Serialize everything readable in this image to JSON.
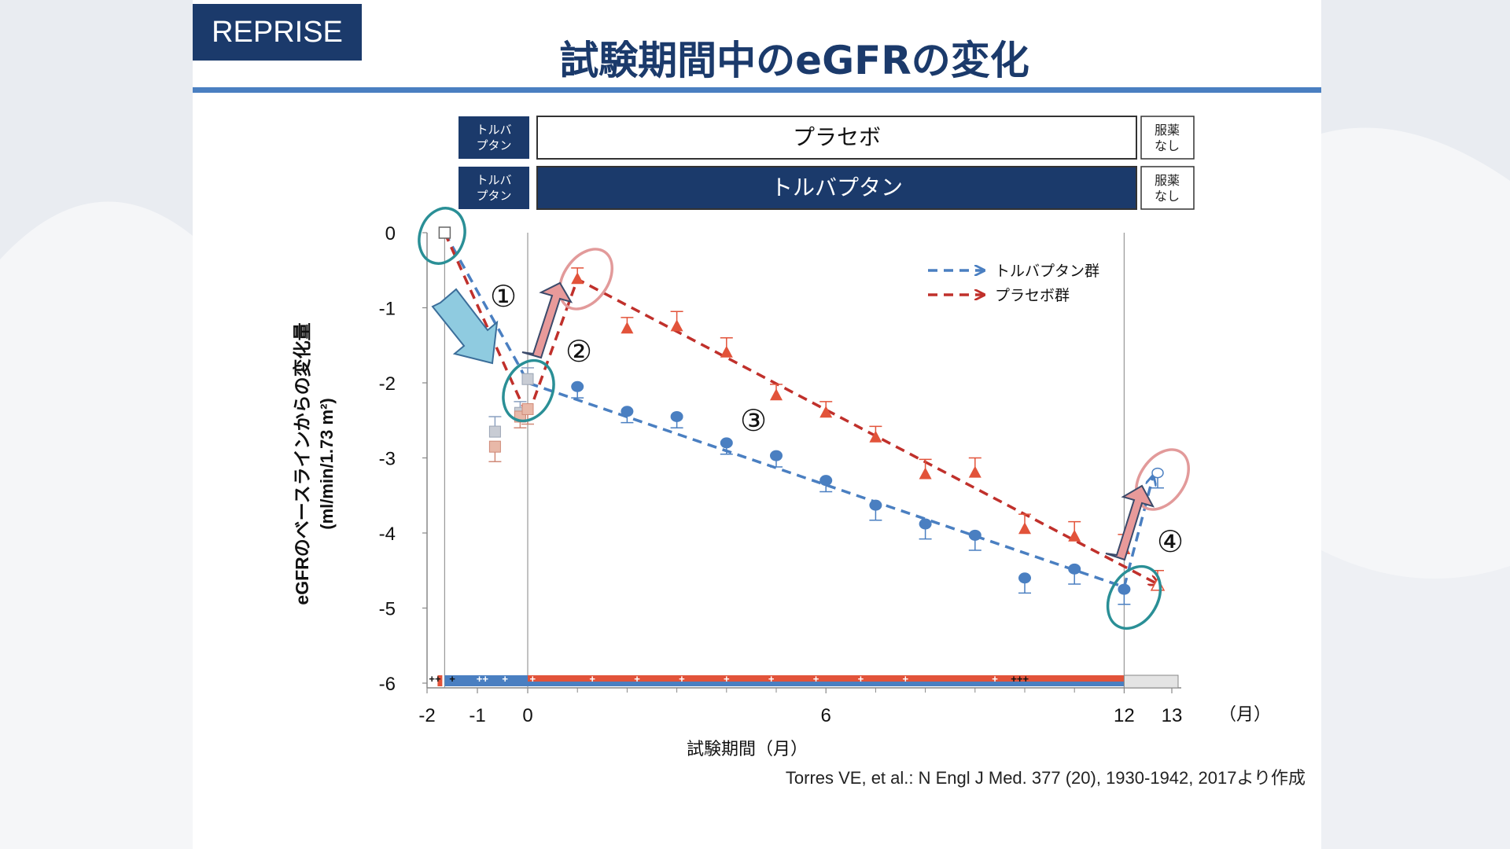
{
  "badge": "REPRISE",
  "title": "試験期間中のeGFRの変化",
  "citation": "Torres VE, et al.: N Engl J Med. 377 (20), 1930-1942, 2017より作成",
  "colors": {
    "navy": "#1b3a6b",
    "rule": "#4a7fc1",
    "tolvaptan": "#4a7fc1",
    "placebo": "#c0302b",
    "placebo_marker": "#e2533a",
    "teal_circle": "#2a8f96",
    "pink_circle": "#e29a9a",
    "light_blue_arrow": "#8fcbe0",
    "pink_arrow": "#e89a9a"
  },
  "phase_bars": [
    {
      "row": "placebo",
      "labels": [
        "トルバ\nプタン",
        "プラセボ",
        "服薬\nなし"
      ]
    },
    {
      "row": "tolvaptan",
      "labels": [
        "トルバ\nプタン",
        "トルバプタン",
        "服薬\nなし"
      ]
    }
  ],
  "annotations": {
    "step_numbers": [
      "①",
      "②",
      "③",
      "④"
    ],
    "bottom_marks": [
      "++",
      "+",
      "++",
      "+",
      "+",
      "+",
      "+",
      "+",
      "+",
      "+",
      "+",
      "+",
      "+",
      "+++",
      "+"
    ]
  },
  "chart_data": {
    "type": "scatter",
    "title": "",
    "xlabel": "試験期間（月）",
    "x_unit_label": "（月）",
    "ylabel": "eGFRのベースラインからの変化量",
    "ylabel_unit": "(ml/min/1.73 m²)",
    "x_ticks": [
      "-2",
      "-1",
      "0",
      "6",
      "12",
      "13"
    ],
    "x_tick_values": [
      -2,
      -1,
      0,
      6,
      12,
      13
    ],
    "y_ticks": [
      "0",
      "-1",
      "-2",
      "-3",
      "-4",
      "-5",
      "-6"
    ],
    "y_tick_values": [
      0,
      -1,
      -2,
      -3,
      -4,
      -5,
      -6
    ],
    "xlim": [
      -2,
      13.2
    ],
    "ylim": [
      -6,
      0
    ],
    "legend_position": "top-right",
    "series": [
      {
        "name": "トルバプタン群",
        "marker": "circle",
        "run_in": [
          {
            "x": -1.65,
            "y": 0,
            "marker": "open-square"
          },
          {
            "x": -0.65,
            "y": -2.65,
            "err": 0.2,
            "marker": "gray-square"
          },
          {
            "x": -0.15,
            "y": -2.4,
            "err": 0.15,
            "marker": "gray-square"
          },
          {
            "x": 0,
            "y": -1.95,
            "err": 0.15,
            "marker": "gray-square"
          }
        ],
        "points": [
          {
            "x": 1,
            "y": -2.05,
            "err": 0.15
          },
          {
            "x": 2,
            "y": -2.38,
            "err": 0.15
          },
          {
            "x": 3,
            "y": -2.45,
            "err": 0.15
          },
          {
            "x": 4,
            "y": -2.8,
            "err": 0.15
          },
          {
            "x": 5,
            "y": -2.97,
            "err": 0.15
          },
          {
            "x": 6,
            "y": -3.3,
            "err": 0.15
          },
          {
            "x": 7,
            "y": -3.63,
            "err": 0.2
          },
          {
            "x": 8,
            "y": -3.88,
            "err": 0.2
          },
          {
            "x": 9,
            "y": -4.03,
            "err": 0.2
          },
          {
            "x": 10,
            "y": -4.6,
            "err": 0.2
          },
          {
            "x": 11,
            "y": -4.48,
            "err": 0.2
          },
          {
            "x": 12,
            "y": -4.75,
            "err": 0.2
          },
          {
            "x": 12.7,
            "y": -3.2,
            "err": 0.2,
            "marker": "open-circle"
          }
        ],
        "trend": [
          {
            "x": -1.65,
            "y": 0
          },
          {
            "x": -0.15,
            "y": -1.8
          },
          {
            "x": 0,
            "y": -2.0
          },
          {
            "x": 12,
            "y": -4.72
          },
          {
            "x": 12.6,
            "y": -3.25
          }
        ]
      },
      {
        "name": "プラセボ群",
        "marker": "triangle",
        "run_in": [
          {
            "x": -0.65,
            "y": -2.85,
            "err": 0.2,
            "marker": "tan-square"
          },
          {
            "x": -0.15,
            "y": -2.45,
            "err": 0.15,
            "marker": "tan-square"
          },
          {
            "x": 0,
            "y": -2.35,
            "err": 0.2,
            "marker": "tan-square"
          }
        ],
        "points": [
          {
            "x": 1,
            "y": -0.62,
            "err": 0.15
          },
          {
            "x": 2,
            "y": -1.28,
            "err": 0.15
          },
          {
            "x": 3,
            "y": -1.25,
            "err": 0.2
          },
          {
            "x": 4,
            "y": -1.6,
            "err": 0.2
          },
          {
            "x": 5,
            "y": -2.17,
            "err": 0.15
          },
          {
            "x": 6,
            "y": -2.4,
            "err": 0.15
          },
          {
            "x": 7,
            "y": -2.73,
            "err": 0.15
          },
          {
            "x": 8,
            "y": -3.22,
            "err": 0.2
          },
          {
            "x": 9,
            "y": -3.2,
            "err": 0.2
          },
          {
            "x": 10,
            "y": -3.95,
            "err": 0.2
          },
          {
            "x": 11,
            "y": -4.05,
            "err": 0.2
          },
          {
            "x": 12,
            "y": -4.22,
            "err": 0.2
          },
          {
            "x": 12.7,
            "y": -4.7,
            "err": 0.2,
            "marker": "open-triangle"
          }
        ],
        "trend": [
          {
            "x": -1.65,
            "y": 0
          },
          {
            "x": 0,
            "y": -2.45
          },
          {
            "x": 1,
            "y": -0.62
          },
          {
            "x": 12.7,
            "y": -4.68
          }
        ]
      }
    ]
  }
}
